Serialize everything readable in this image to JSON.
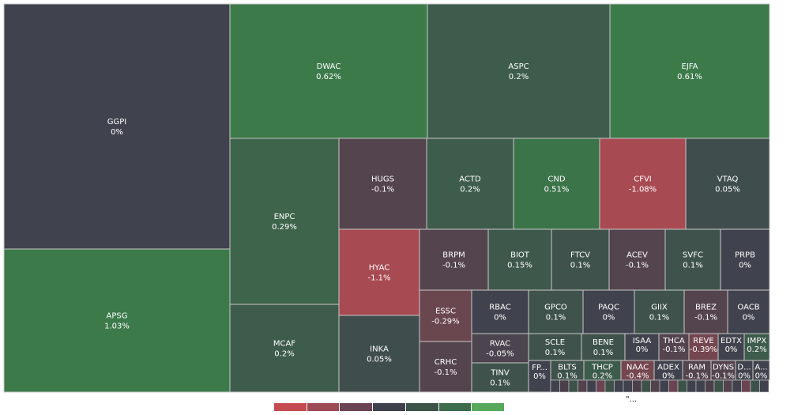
{
  "chart_data": {
    "type": "treemap",
    "colors": {
      "neutral": "#40434d",
      "positive_max": "#3c7a4a",
      "negative_max": "#a84a52",
      "border": "#c8c8c8"
    },
    "legend": [
      "#c44b4f",
      "#9c4a53",
      "#6b4453",
      "#3f414d",
      "#3c5349",
      "#3d6c4c",
      "#58a85c"
    ],
    "more_indicator": "\"...",
    "tiles": [
      {
        "ticker": "GGPI",
        "change": 0,
        "label": "0%"
      },
      {
        "ticker": "APSG",
        "change": 1.03,
        "label": "1.03%"
      },
      {
        "ticker": "DWAC",
        "change": 0.62,
        "label": "0.62%"
      },
      {
        "ticker": "ASPC",
        "change": 0.2,
        "label": "0.2%"
      },
      {
        "ticker": "EJFA",
        "change": 0.61,
        "label": "0.61%"
      },
      {
        "ticker": "ENPC",
        "change": 0.29,
        "label": "0.29%"
      },
      {
        "ticker": "MCAF",
        "change": 0.2,
        "label": "0.2%"
      },
      {
        "ticker": "HUGS",
        "change": -0.1,
        "label": "-0.1%"
      },
      {
        "ticker": "ACTD",
        "change": 0.2,
        "label": "0.2%"
      },
      {
        "ticker": "CND",
        "change": 0.51,
        "label": "0.51%"
      },
      {
        "ticker": "CFVI",
        "change": -1.08,
        "label": "-1.08%"
      },
      {
        "ticker": "VTAQ",
        "change": 0.05,
        "label": "0.05%"
      },
      {
        "ticker": "HYAC",
        "change": -1.1,
        "label": "-1.1%"
      },
      {
        "ticker": "INKA",
        "change": 0.05,
        "label": "0.05%"
      },
      {
        "ticker": "BRPM",
        "change": -0.1,
        "label": "-0.1%"
      },
      {
        "ticker": "BIOT",
        "change": 0.15,
        "label": "0.15%"
      },
      {
        "ticker": "FTCV",
        "change": 0.1,
        "label": "0.1%"
      },
      {
        "ticker": "ACEV",
        "change": -0.1,
        "label": "-0.1%"
      },
      {
        "ticker": "SVFC",
        "change": 0.1,
        "label": "0.1%"
      },
      {
        "ticker": "PRPB",
        "change": 0,
        "label": "0%"
      },
      {
        "ticker": "ESSC",
        "change": -0.29,
        "label": "-0.29%"
      },
      {
        "ticker": "RBAC",
        "change": 0,
        "label": "0%"
      },
      {
        "ticker": "GPCO",
        "change": 0.1,
        "label": "0.1%"
      },
      {
        "ticker": "PAQC",
        "change": 0,
        "label": "0%"
      },
      {
        "ticker": "GIIX",
        "change": 0.1,
        "label": "0.1%"
      },
      {
        "ticker": "BREZ",
        "change": -0.1,
        "label": "-0.1%"
      },
      {
        "ticker": "OACB",
        "change": 0,
        "label": "0%"
      },
      {
        "ticker": "CRHC",
        "change": -0.1,
        "label": "-0.1%"
      },
      {
        "ticker": "RVAC",
        "change": -0.05,
        "label": "-0.05%"
      },
      {
        "ticker": "TINV",
        "change": 0.1,
        "label": "0.1%"
      },
      {
        "ticker": "SCLE",
        "change": 0.1,
        "label": "0.1%"
      },
      {
        "ticker": "BENE",
        "change": 0.1,
        "label": "0.1%"
      },
      {
        "ticker": "ISAA",
        "change": 0,
        "label": "0%"
      },
      {
        "ticker": "THCA",
        "change": -0.1,
        "label": "-0.1%"
      },
      {
        "ticker": "REVE",
        "change": -0.39,
        "label": "-0.39%"
      },
      {
        "ticker": "EDTX",
        "change": 0,
        "label": "0%"
      },
      {
        "ticker": "IMPX",
        "change": 0.2,
        "label": "0.2%"
      },
      {
        "ticker": "FP...",
        "change": 0,
        "label": "0%"
      },
      {
        "ticker": "BLTS",
        "change": 0.1,
        "label": "0.1%"
      },
      {
        "ticker": "THCP",
        "change": 0.2,
        "label": "0.2%"
      },
      {
        "ticker": "NAAC",
        "change": -0.4,
        "label": "-0.4%"
      },
      {
        "ticker": "ADEX",
        "change": 0,
        "label": "0%"
      },
      {
        "ticker": "RAM",
        "change": -0.1,
        "label": "-0.1%"
      },
      {
        "ticker": "DYNS",
        "change": -0.1,
        "label": "-0.1%"
      },
      {
        "ticker": "D...",
        "change": 0,
        "label": "0%"
      },
      {
        "ticker": "A...",
        "change": 0,
        "label": "0%"
      }
    ]
  }
}
